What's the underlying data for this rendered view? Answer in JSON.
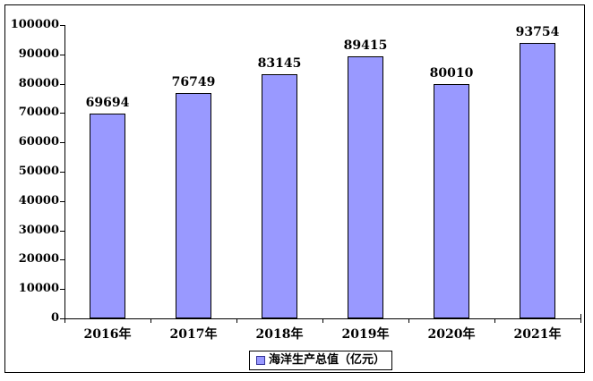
{
  "chart_data": {
    "type": "bar",
    "title": "",
    "categories": [
      "2016年",
      "2017年",
      "2018年",
      "2019年",
      "2020年",
      "2021年"
    ],
    "values": [
      69694,
      76749,
      83145,
      89415,
      80010,
      93754
    ],
    "data_labels": [
      "69694",
      "76749",
      "83145",
      "89415",
      "80010",
      "93754"
    ],
    "series_name": "海洋生产总值（亿元）",
    "legend": {
      "label": "海洋生产总值（亿元）",
      "position": "bottom",
      "marker_color": "#9999FF"
    },
    "xlabel": "",
    "ylabel": "",
    "ylim": [
      0,
      100000
    ],
    "ytick_interval": 10000,
    "ytick_labels": [
      "0",
      "10000",
      "20000",
      "30000",
      "40000",
      "50000",
      "60000",
      "70000",
      "80000",
      "90000",
      "100000"
    ],
    "grid": false,
    "bar_color": "#9999FF",
    "bar_border_color": "#000000",
    "background_color": "#FFFFFF"
  }
}
